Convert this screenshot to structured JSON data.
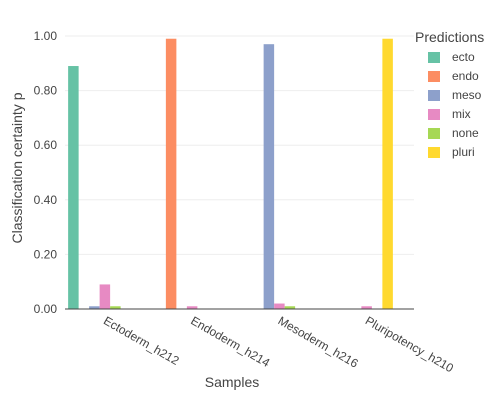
{
  "chart_data": {
    "type": "bar",
    "title": "",
    "xlabel": "Samples",
    "ylabel": "Classification certainty p",
    "ylim": [
      0,
      1.0
    ],
    "yticks": [
      "0.00",
      "0.20",
      "0.40",
      "0.60",
      "0.80",
      "1.00"
    ],
    "ytick_values": [
      0,
      0.2,
      0.4,
      0.6,
      0.8,
      1.0
    ],
    "grid": true,
    "legend_title": "Predictions",
    "legend_position": "right",
    "categories": [
      "Ectoderm_h212",
      "Endoderm_h214",
      "Mesoderm_h216",
      "Pluripotency_h210"
    ],
    "series": [
      {
        "name": "ecto",
        "color": "#66c2a5",
        "values": [
          0.89,
          0.0,
          0.0,
          0.0
        ]
      },
      {
        "name": "endo",
        "color": "#fc8d62",
        "values": [
          0.0,
          0.99,
          0.0,
          0.0
        ]
      },
      {
        "name": "meso",
        "color": "#8da0cb",
        "values": [
          0.01,
          0.0,
          0.97,
          0.0
        ]
      },
      {
        "name": "mix",
        "color": "#e78ac3",
        "values": [
          0.09,
          0.01,
          0.02,
          0.01
        ]
      },
      {
        "name": "none",
        "color": "#a6d854",
        "values": [
          0.01,
          0.0,
          0.01,
          0.0
        ]
      },
      {
        "name": "pluri",
        "color": "#ffd92f",
        "values": [
          0.0,
          0.0,
          0.0,
          0.99
        ]
      }
    ]
  }
}
